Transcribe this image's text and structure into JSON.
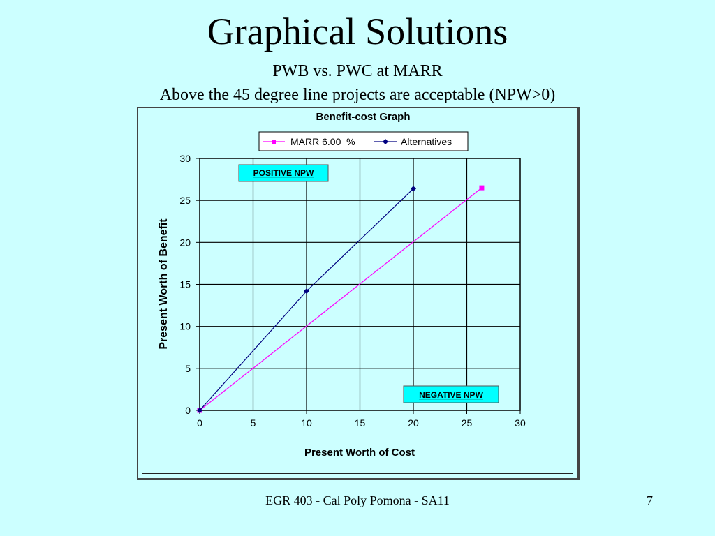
{
  "slide": {
    "title": "Graphical Solutions",
    "subtitle1": "PWB vs. PWC at MARR",
    "subtitle2": "Above the 45 degree line projects are acceptable (NPW>0)",
    "footer": "EGR 403 - Cal Poly Pomona - SA11",
    "page_number": "7"
  },
  "colors": {
    "background": "#ccffff",
    "marr_line": "#ff00ff",
    "alternatives_line": "#000080",
    "annotation_bg": "#00ffff"
  },
  "chart_data": {
    "type": "line",
    "title": "Benefit-cost Graph",
    "xlabel": "Present Worth of Cost",
    "ylabel": "Present Worth of Benefit",
    "xlim": [
      0,
      30
    ],
    "ylim": [
      0,
      30
    ],
    "x_ticks": [
      "0",
      "5",
      "10",
      "15",
      "20",
      "25",
      "30"
    ],
    "y_ticks": [
      "0",
      "5",
      "10",
      "15",
      "20",
      "25",
      "30"
    ],
    "grid": true,
    "legend_position": "top-center",
    "series": [
      {
        "name": "MARR 6.00  %",
        "marker": "square",
        "color": "#ff00ff",
        "points": [
          [
            0,
            0
          ],
          [
            26.4,
            26.5
          ]
        ]
      },
      {
        "name": "Alternatives",
        "marker": "diamond",
        "color": "#000080",
        "points": [
          [
            0,
            0
          ],
          [
            10,
            14.2
          ],
          [
            20,
            26.4
          ]
        ]
      }
    ],
    "annotations": [
      "POSITIVE NPW",
      "NEGATIVE NPW"
    ]
  }
}
